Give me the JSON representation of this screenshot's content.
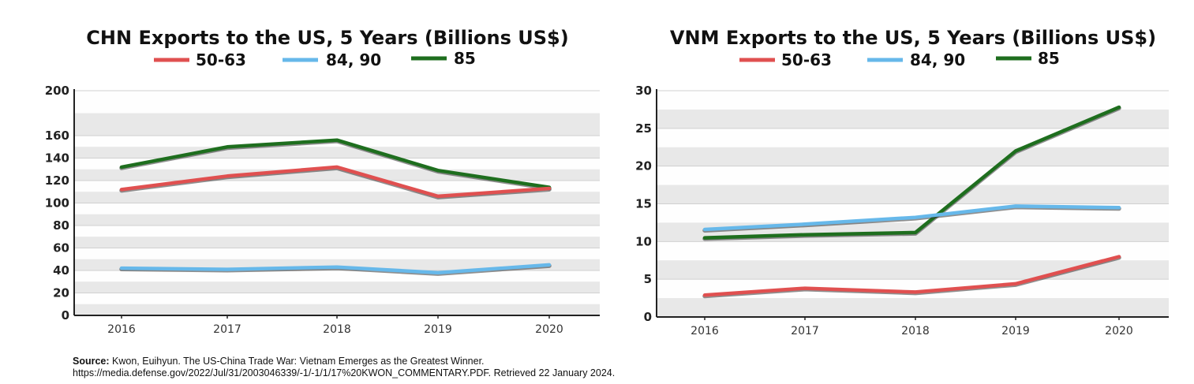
{
  "colors": {
    "50-63": "#e05050",
    "84, 90": "#66b8ea",
    "85": "#1e6e1e"
  },
  "chart_data": [
    {
      "type": "line",
      "title": "CHN Exports to the US, 5 Years (Billions US$)",
      "x": [
        "2016",
        "2017",
        "2018",
        "2019",
        "2020"
      ],
      "series": [
        {
          "name": "50-63",
          "values": [
            112,
            124,
            132,
            106,
            113
          ]
        },
        {
          "name": "84, 90",
          "values": [
            42,
            41,
            43,
            38,
            45
          ]
        },
        {
          "name": "85",
          "values": [
            132,
            150,
            156,
            129,
            114
          ]
        }
      ],
      "ylim": [
        0,
        200
      ],
      "yticks": [
        "0",
        "20",
        "40",
        "60",
        "80",
        "100",
        "120",
        "140",
        "160",
        "200"
      ],
      "legend": "top",
      "grid": true
    },
    {
      "type": "line",
      "title": "VNM Exports to the US, 5 Years (Billions US$)",
      "x": [
        "2016",
        "2017",
        "2018",
        "2019",
        "2020"
      ],
      "series": [
        {
          "name": "50-63",
          "values": [
            2.9,
            3.8,
            3.3,
            4.4,
            8.0
          ]
        },
        {
          "name": "84, 90",
          "values": [
            11.6,
            12.3,
            13.2,
            14.7,
            14.5
          ]
        },
        {
          "name": "85",
          "values": [
            10.5,
            10.9,
            11.2,
            22,
            27.8
          ]
        }
      ],
      "ylim": [
        0,
        30
      ],
      "yticks": [
        "0",
        "5",
        "10",
        "15",
        "20",
        "25",
        "30"
      ],
      "legend": "top",
      "grid": true
    }
  ],
  "source": {
    "label": "Source:",
    "line1": " Kwon, Euihyun. The US-China Trade War: Vietnam Emerges as the Greatest Winner.",
    "line2": "https://media.defense.gov/2022/Jul/31/2003046339/-1/-1/1/17%20KWON_COMMENTARY.PDF. Retrieved 22 January 2024."
  }
}
